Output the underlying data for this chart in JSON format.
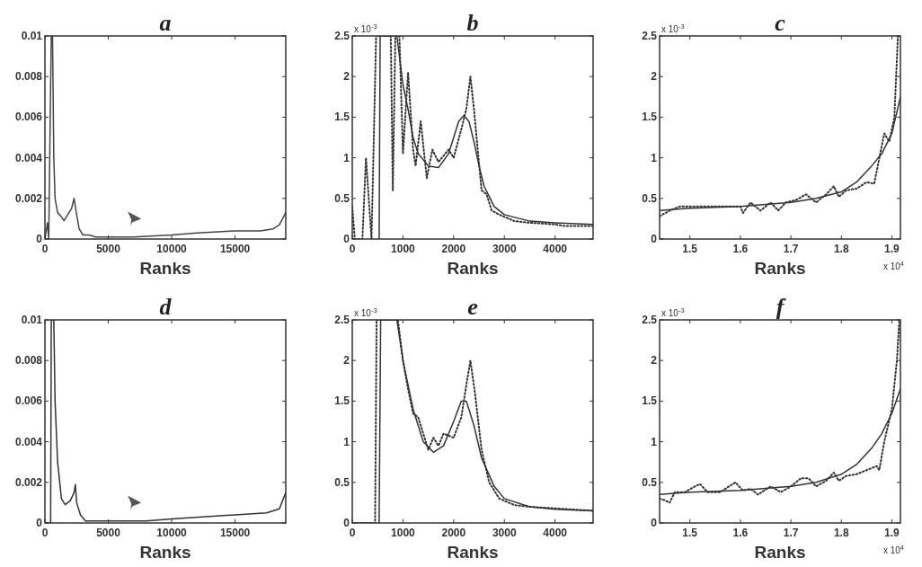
{
  "chart_data": [
    {
      "type": "line",
      "title": "a",
      "xlabel": "Ranks",
      "xlim": [
        0,
        19000
      ],
      "xticks": [
        0,
        5000,
        10000,
        15000
      ],
      "ylim": [
        0,
        0.01
      ],
      "yticks": [
        0,
        0.002,
        0.004,
        0.006,
        0.008,
        0.01
      ],
      "series": [
        {
          "color": "#444444",
          "line_style": "solid",
          "x": [
            0,
            200,
            300,
            500,
            600,
            700,
            800,
            1000,
            1300,
            1500,
            1800,
            2100,
            2300,
            2500,
            2700,
            3000,
            3500,
            4000,
            5000,
            7000,
            10000,
            12000,
            15000,
            17000,
            18000,
            18500,
            19000
          ],
          "values": [
            0,
            0.0008,
            0,
            0.01,
            0.01,
            0.004,
            0.002,
            0.0013,
            0.0011,
            0.0009,
            0.0012,
            0.0015,
            0.002,
            0.0012,
            0.0005,
            0.0002,
            0.0002,
            0.0001,
            0.0001,
            0.0001,
            0.0002,
            0.0003,
            0.0004,
            0.0004,
            0.0005,
            0.0007,
            0.0013
          ]
        }
      ]
    },
    {
      "type": "line",
      "title": "b",
      "xlabel": "Ranks",
      "annotations": [
        "x 10$^{-3}$"
      ],
      "xlim": [
        0,
        4750
      ],
      "xticks": [
        0,
        1000,
        2000,
        3000,
        4000
      ],
      "ylim": [
        0,
        2.5
      ],
      "yticks": [
        0,
        0.5,
        1,
        1.5,
        2,
        2.5
      ],
      "series": [
        {
          "color": "#333333",
          "line_style": "dotted",
          "x": [
            0,
            50,
            200,
            270,
            380,
            470,
            760,
            800,
            850,
            930,
            1000,
            1100,
            1200,
            1250,
            1350,
            1470,
            1580,
            1700,
            1900,
            2000,
            2150,
            2250,
            2330,
            2400,
            2550,
            2650,
            2750,
            2900,
            3200,
            3500,
            4000,
            4200,
            4750
          ],
          "values": [
            0.4,
            0,
            0,
            1,
            0,
            2.5,
            2.5,
            0.6,
            2.5,
            2.5,
            1.05,
            2.05,
            1.1,
            0.9,
            1.45,
            0.75,
            1.1,
            0.95,
            1.1,
            1,
            1.35,
            1.6,
            2,
            1.6,
            0.6,
            0.55,
            0.35,
            0.3,
            0.22,
            0.2,
            0.18,
            0.16,
            0.16
          ]
        },
        {
          "color": "#333333",
          "line_style": "solid",
          "x": [
            530,
            550,
            880,
            1000,
            1100,
            1200,
            1300,
            1500,
            1700,
            1900,
            2000,
            2100,
            2200,
            2300,
            2400,
            2500,
            2600,
            2800,
            3000,
            3500,
            4000,
            4750
          ],
          "values": [
            0,
            2.5,
            2.5,
            1.9,
            1.6,
            1.25,
            1.05,
            0.9,
            0.88,
            1.05,
            1.25,
            1.45,
            1.52,
            1.45,
            1.2,
            0.9,
            0.65,
            0.4,
            0.3,
            0.22,
            0.2,
            0.18
          ]
        }
      ]
    },
    {
      "type": "line",
      "title": "c",
      "xlabel": "Ranks",
      "annotations": [
        "x 10$^{-3}$",
        "x 10$^{4}$"
      ],
      "xlim": [
        1.44,
        1.917
      ],
      "xticks": [
        1.5,
        1.6,
        1.7,
        1.8,
        1.9
      ],
      "ylim": [
        0,
        2.5
      ],
      "yticks": [
        0,
        0.5,
        1,
        1.5,
        2,
        2.5
      ],
      "series": [
        {
          "color": "#333333",
          "line_style": "dotted",
          "x": [
            1.44,
            1.46,
            1.48,
            1.55,
            1.6,
            1.605,
            1.62,
            1.64,
            1.66,
            1.675,
            1.69,
            1.71,
            1.73,
            1.75,
            1.77,
            1.785,
            1.795,
            1.81,
            1.83,
            1.85,
            1.865,
            1.885,
            1.895,
            1.905,
            1.912
          ],
          "values": [
            0.28,
            0.35,
            0.4,
            0.4,
            0.4,
            0.32,
            0.45,
            0.35,
            0.45,
            0.35,
            0.45,
            0.48,
            0.55,
            0.45,
            0.55,
            0.65,
            0.52,
            0.6,
            0.62,
            0.7,
            0.68,
            1.3,
            1.2,
            1.5,
            2.5
          ]
        },
        {
          "color": "#333333",
          "line_style": "solid",
          "x": [
            1.44,
            1.5,
            1.6,
            1.7,
            1.75,
            1.8,
            1.83,
            1.86,
            1.88,
            1.9,
            1.917
          ],
          "values": [
            0.35,
            0.38,
            0.4,
            0.45,
            0.5,
            0.58,
            0.7,
            0.9,
            1.05,
            1.3,
            1.75
          ]
        }
      ]
    },
    {
      "type": "line",
      "title": "d",
      "xlabel": "Ranks",
      "xlim": [
        0,
        19000
      ],
      "xticks": [
        0,
        5000,
        10000,
        15000
      ],
      "ylim": [
        0,
        0.01
      ],
      "yticks": [
        0,
        0.002,
        0.004,
        0.006,
        0.008,
        0.01
      ],
      "series": [
        {
          "color": "#333333",
          "line_style": "solid",
          "x": [
            0,
            450,
            500,
            700,
            800,
            1000,
            1300,
            1600,
            2000,
            2300,
            2400,
            2500,
            2800,
            3200,
            5000,
            8000,
            10000,
            15000,
            17500,
            18500,
            19000
          ],
          "values": [
            0,
            0,
            0.01,
            0.01,
            0.006,
            0.003,
            0.0012,
            0.0009,
            0.0011,
            0.0015,
            0.0019,
            0.001,
            0.0004,
            0.0001,
            0.0001,
            0.0001,
            0.0002,
            0.0004,
            0.0005,
            0.0007,
            0.0015
          ]
        }
      ]
    },
    {
      "type": "line",
      "title": "e",
      "xlabel": "Ranks",
      "annotations": [
        "x 10$^{-3}$"
      ],
      "xlim": [
        0,
        4750
      ],
      "xticks": [
        0,
        1000,
        2000,
        3000,
        4000
      ],
      "ylim": [
        0,
        2.5
      ],
      "yticks": [
        0,
        0.5,
        1,
        1.5,
        2,
        2.5
      ],
      "series": [
        {
          "color": "#333333",
          "line_style": "dotted",
          "x": [
            0,
            450,
            480,
            900,
            1000,
            1100,
            1200,
            1300,
            1400,
            1500,
            1600,
            1700,
            1800,
            2000,
            2150,
            2250,
            2330,
            2420,
            2550,
            2700,
            2900,
            3200,
            3500,
            4000,
            4750
          ],
          "values": [
            0,
            0,
            2.5,
            2.5,
            2,
            1.65,
            1.35,
            1.3,
            1.1,
            0.9,
            1.05,
            0.95,
            1.1,
            1.05,
            1.3,
            1.7,
            2,
            1.6,
            0.9,
            0.5,
            0.3,
            0.22,
            0.2,
            0.18,
            0.15
          ]
        },
        {
          "color": "#333333",
          "line_style": "solid",
          "x": [
            530,
            560,
            880,
            1000,
            1200,
            1400,
            1600,
            1800,
            2000,
            2150,
            2250,
            2400,
            2550,
            2800,
            3000,
            3500,
            4000,
            4750
          ],
          "values": [
            0,
            2.5,
            2.5,
            2,
            1.4,
            1,
            0.87,
            0.95,
            1.25,
            1.5,
            1.5,
            1.2,
            0.8,
            0.45,
            0.3,
            0.2,
            0.17,
            0.15
          ]
        }
      ]
    },
    {
      "type": "line",
      "title": "f",
      "xlabel": "Ranks",
      "annotations": [
        "x 10$^{-3}$",
        "x 10$^{4}$"
      ],
      "xlim": [
        1.44,
        1.917
      ],
      "xticks": [
        1.5,
        1.6,
        1.7,
        1.8,
        1.9
      ],
      "ylim": [
        0,
        2.5
      ],
      "yticks": [
        0,
        0.5,
        1,
        1.5,
        2,
        2.5
      ],
      "series": [
        {
          "color": "#333333",
          "line_style": "dotted",
          "x": [
            1.44,
            1.45,
            1.46,
            1.47,
            1.49,
            1.51,
            1.52,
            1.535,
            1.56,
            1.59,
            1.605,
            1.62,
            1.635,
            1.66,
            1.68,
            1.7,
            1.72,
            1.735,
            1.75,
            1.77,
            1.785,
            1.795,
            1.81,
            1.83,
            1.85,
            1.87,
            1.875,
            1.885,
            1.9,
            1.91,
            1.915
          ],
          "values": [
            0.3,
            0.28,
            0.25,
            0.38,
            0.38,
            0.45,
            0.48,
            0.38,
            0.38,
            0.5,
            0.4,
            0.42,
            0.35,
            0.45,
            0.38,
            0.45,
            0.55,
            0.55,
            0.45,
            0.52,
            0.62,
            0.52,
            0.58,
            0.6,
            0.65,
            0.7,
            0.65,
            1,
            1.4,
            2,
            2.5
          ]
        },
        {
          "color": "#333333",
          "line_style": "solid",
          "x": [
            1.44,
            1.5,
            1.6,
            1.7,
            1.75,
            1.8,
            1.83,
            1.86,
            1.88,
            1.9,
            1.917
          ],
          "values": [
            0.35,
            0.38,
            0.4,
            0.45,
            0.5,
            0.6,
            0.72,
            0.92,
            1.1,
            1.35,
            1.65
          ]
        }
      ]
    }
  ]
}
